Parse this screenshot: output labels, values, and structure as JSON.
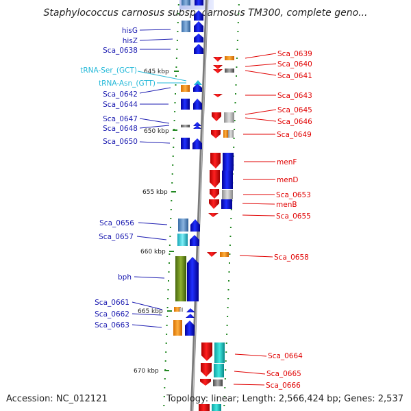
{
  "title": "Staphylococcus carnosus subsp. carnosus TM300, complete geno...",
  "footer": {
    "accession": "Accession: NC_012121",
    "summary": "Topology: linear; Length: 2,566,424 bp; Genes: 2,537"
  },
  "colors": {
    "left_label": "#1a1ab0",
    "right_label": "#e00000",
    "trna_label": "#22b8d8",
    "backbone": "#8a8a8a",
    "tick": "#228822"
  },
  "kbp_marks": [
    "645 kbp",
    "650 kbp",
    "655 kbp",
    "660 kbp",
    "665 kbp",
    "670 kbp"
  ],
  "left_genes": [
    "hisG",
    "hisZ",
    "Sca_0638",
    "Sca_0642",
    "Sca_0644",
    "Sca_0647",
    "Sca_0648",
    "Sca_0650",
    "Sca_0656",
    "Sca_0657",
    "bph",
    "Sca_0661",
    "Sca_0662",
    "Sca_0663"
  ],
  "trna_genes": [
    "tRNA-Ser_(GCT)",
    "tRNA-Asn_(GTT)"
  ],
  "right_genes": [
    "Sca_0639",
    "Sca_0640",
    "Sca_0641",
    "Sca_0643",
    "Sca_0645",
    "Sca_0646",
    "Sca_0649",
    "menF",
    "menD",
    "Sca_0653",
    "menB",
    "Sca_0655",
    "Sca_0658",
    "Sca_0664",
    "Sca_0665",
    "Sca_0666"
  ]
}
